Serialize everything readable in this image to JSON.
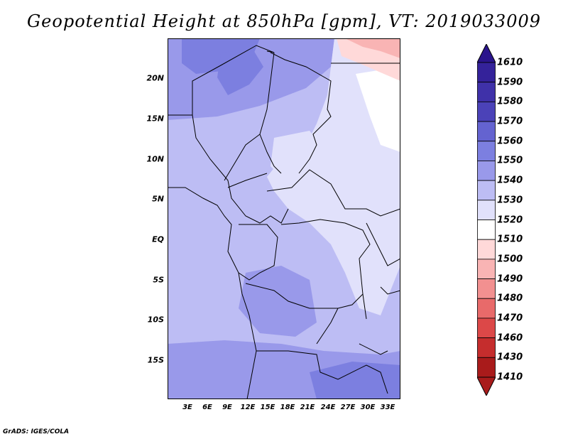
{
  "title": "Geopotential Height at 850hPa [gpm], VT: 2019033009",
  "footer": "GrADS: IGES/COLA",
  "map": {
    "lat_ticks": [
      "20N",
      "15N",
      "10N",
      "5N",
      "EQ",
      "5S",
      "10S",
      "15S"
    ],
    "lon_ticks": [
      "3E",
      "6E",
      "9E",
      "12E",
      "15E",
      "18E",
      "21E",
      "24E",
      "27E",
      "30E",
      "33E"
    ]
  },
  "colorbar": {
    "labels": [
      "1610",
      "1590",
      "1580",
      "1570",
      "1560",
      "1550",
      "1540",
      "1530",
      "1520",
      "1510",
      "1500",
      "1490",
      "1480",
      "1470",
      "1460",
      "1430",
      "1410"
    ],
    "colors": {
      "1610": "#2a148c",
      "1590": "#34229a",
      "1580": "#3f31a9",
      "1570": "#4b42b8",
      "1560": "#6463d0",
      "1550": "#7c7fe0",
      "1540": "#9999ea",
      "1530": "#bdbdf4",
      "1520": "#e1e1fb",
      "1510": "#ffffff",
      "1500": "#ffd9d9",
      "1490": "#f9b4b4",
      "1480": "#f29090",
      "1470": "#e86a6a",
      "1460": "#dc4848",
      "1430": "#c52d2d",
      "1410": "#a91b1b"
    }
  }
}
